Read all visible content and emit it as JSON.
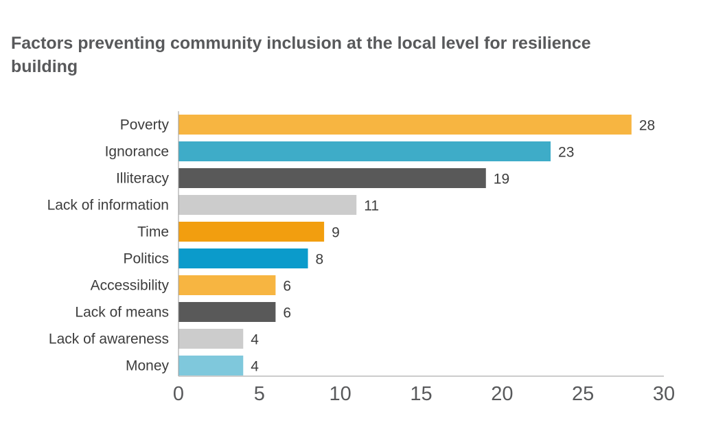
{
  "chart_data": {
    "type": "bar",
    "orientation": "horizontal",
    "title": "Factors preventing community inclusion at the local level for resilience building",
    "categories": [
      "Poverty",
      "Ignorance",
      "Illiteracy",
      "Lack of information",
      "Time",
      "Politics",
      "Accessibility",
      "Lack of means",
      "Lack of awareness",
      "Money"
    ],
    "values": [
      28,
      23,
      19,
      11,
      9,
      8,
      6,
      6,
      4,
      4
    ],
    "colors": [
      "#f7b541",
      "#3eacc8",
      "#595959",
      "#cccccc",
      "#f29e0f",
      "#0b9bcb",
      "#f7b541",
      "#595959",
      "#cccccc",
      "#7fc8dc"
    ],
    "xlim": [
      0,
      30
    ],
    "xticks": [
      0,
      5,
      10,
      15,
      20,
      25,
      30
    ],
    "grid": false,
    "legend": "none"
  }
}
